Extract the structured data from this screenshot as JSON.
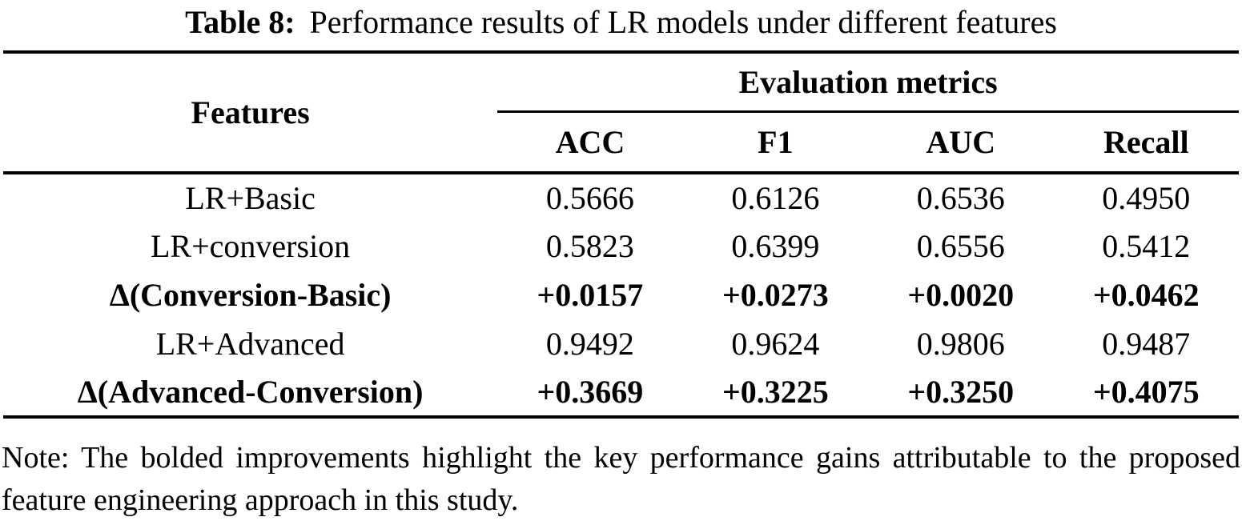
{
  "caption": {
    "label": "Table 8:",
    "text": "Performance results of LR models under different features"
  },
  "table": {
    "header": {
      "features": "Features",
      "group": "Evaluation metrics",
      "metrics": [
        "ACC",
        "F1",
        "AUC",
        "Recall"
      ]
    },
    "rows": [
      {
        "label": "LR+Basic",
        "bold": false,
        "values": [
          "0.5666",
          "0.6126",
          "0.6536",
          "0.4950"
        ]
      },
      {
        "label": "LR+conversion",
        "bold": false,
        "values": [
          "0.5823",
          "0.6399",
          "0.6556",
          "0.5412"
        ]
      },
      {
        "label": "Δ(Conversion-Basic)",
        "bold": true,
        "values": [
          "+0.0157",
          "+0.0273",
          "+0.0020",
          "+0.0462"
        ]
      },
      {
        "label": "LR+Advanced",
        "bold": false,
        "values": [
          "0.9492",
          "0.9624",
          "0.9806",
          "0.9487"
        ]
      },
      {
        "label": "Δ(Advanced-Conversion)",
        "bold": true,
        "values": [
          "+0.3669",
          "+0.3225",
          "+0.3250",
          "+0.4075"
        ]
      }
    ]
  },
  "note": "Note: The bolded improvements highlight the key performance gains attributable to the proposed feature engineering approach in this study.",
  "colors": {
    "background": "#ffffff",
    "text": "#000000",
    "rule": "#000000"
  }
}
